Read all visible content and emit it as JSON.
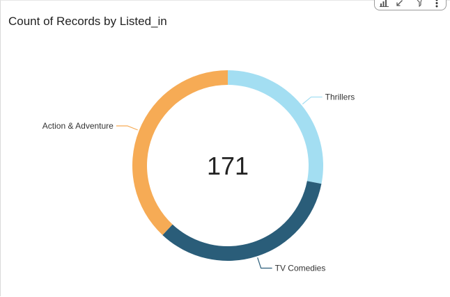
{
  "visual": {
    "title": "Count of Records by Listed_in"
  },
  "toolbar": {
    "icons": [
      "bar-chart-icon",
      "collapse-arrow-icon",
      "filter-icon",
      "more-options-icon"
    ]
  },
  "chart_data": {
    "type": "pie",
    "donut": true,
    "title": "Count of Records by Listed_in",
    "center_label": "171",
    "total": 171,
    "slices": [
      {
        "label": "Thrillers",
        "value": 48,
        "color": "#a3def2"
      },
      {
        "label": "TV Comedies",
        "value": 58,
        "color": "#2a5d79"
      },
      {
        "label": "Action & Adventure",
        "value": 65,
        "color": "#f6ab55"
      }
    ],
    "legend": "none",
    "data_labels": "category names with leader lines"
  }
}
